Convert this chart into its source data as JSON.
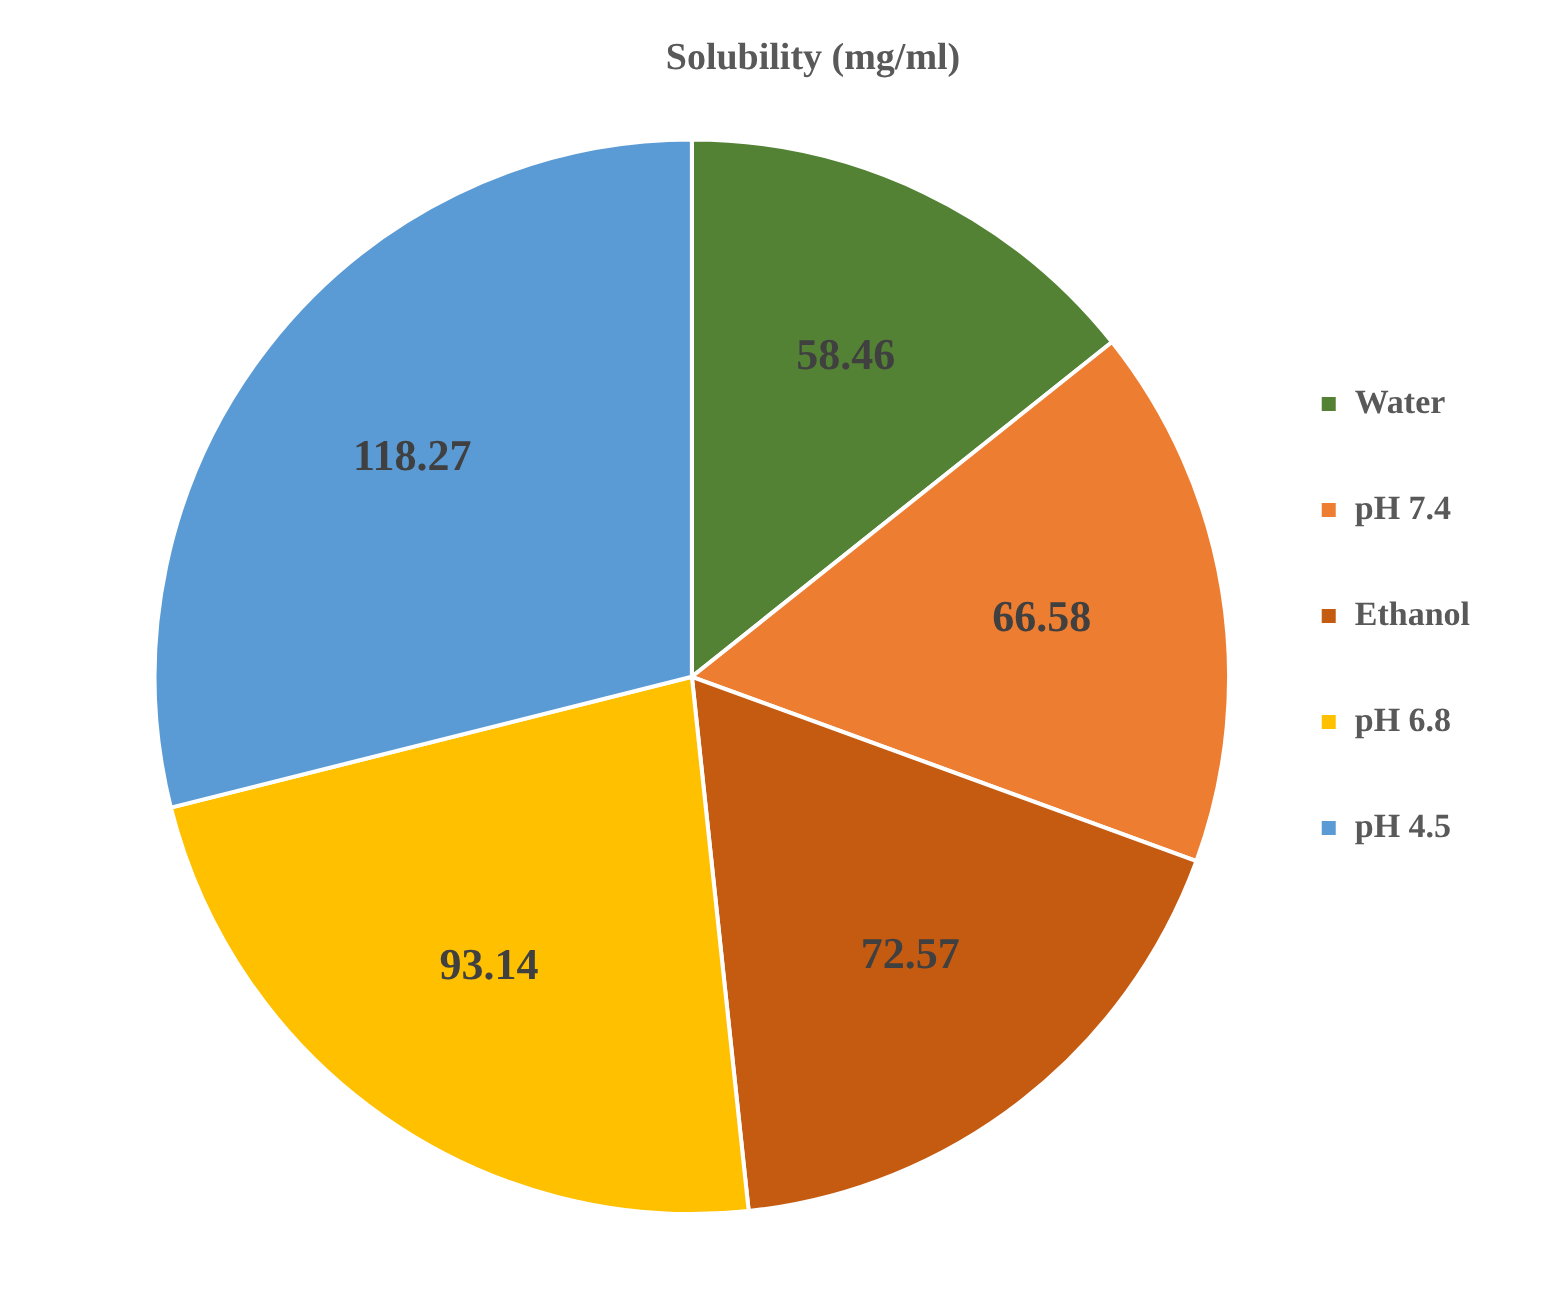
{
  "chart_data": {
    "type": "pie",
    "title": "Solubility (mg/ml)",
    "categories": [
      "Water",
      "pH 7.4",
      "Ethanol",
      "pH 6.8",
      "pH 4.5"
    ],
    "values": [
      58.46,
      66.58,
      72.57,
      93.14,
      118.27
    ],
    "colors": [
      "#548235",
      "#ed7d31",
      "#c55a11",
      "#ffc000",
      "#5b9bd5"
    ],
    "data_labels": true,
    "legend": "right"
  }
}
